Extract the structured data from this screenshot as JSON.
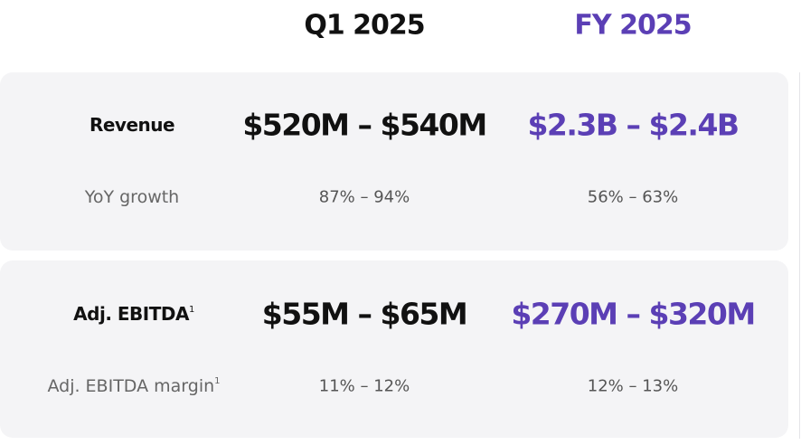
{
  "header": {
    "columns": [
      "Q1 2025",
      "FY 2025"
    ]
  },
  "sections": [
    {
      "metric": {
        "label": "Revenue",
        "values": [
          "$520M – $540M",
          "$2.3B – $2.4B"
        ]
      },
      "sub": {
        "label": "YoY growth",
        "values": [
          "87% – 94%",
          "56% – 63%"
        ]
      }
    },
    {
      "metric": {
        "label": "Adj. EBITDA",
        "footnote": "1",
        "values": [
          "$55M – $65M",
          "$270M – $320M"
        ]
      },
      "sub": {
        "label": "Adj. EBITDA margin",
        "footnote": "1",
        "values": [
          "11% – 12%",
          "12% – 13%"
        ]
      }
    }
  ]
}
